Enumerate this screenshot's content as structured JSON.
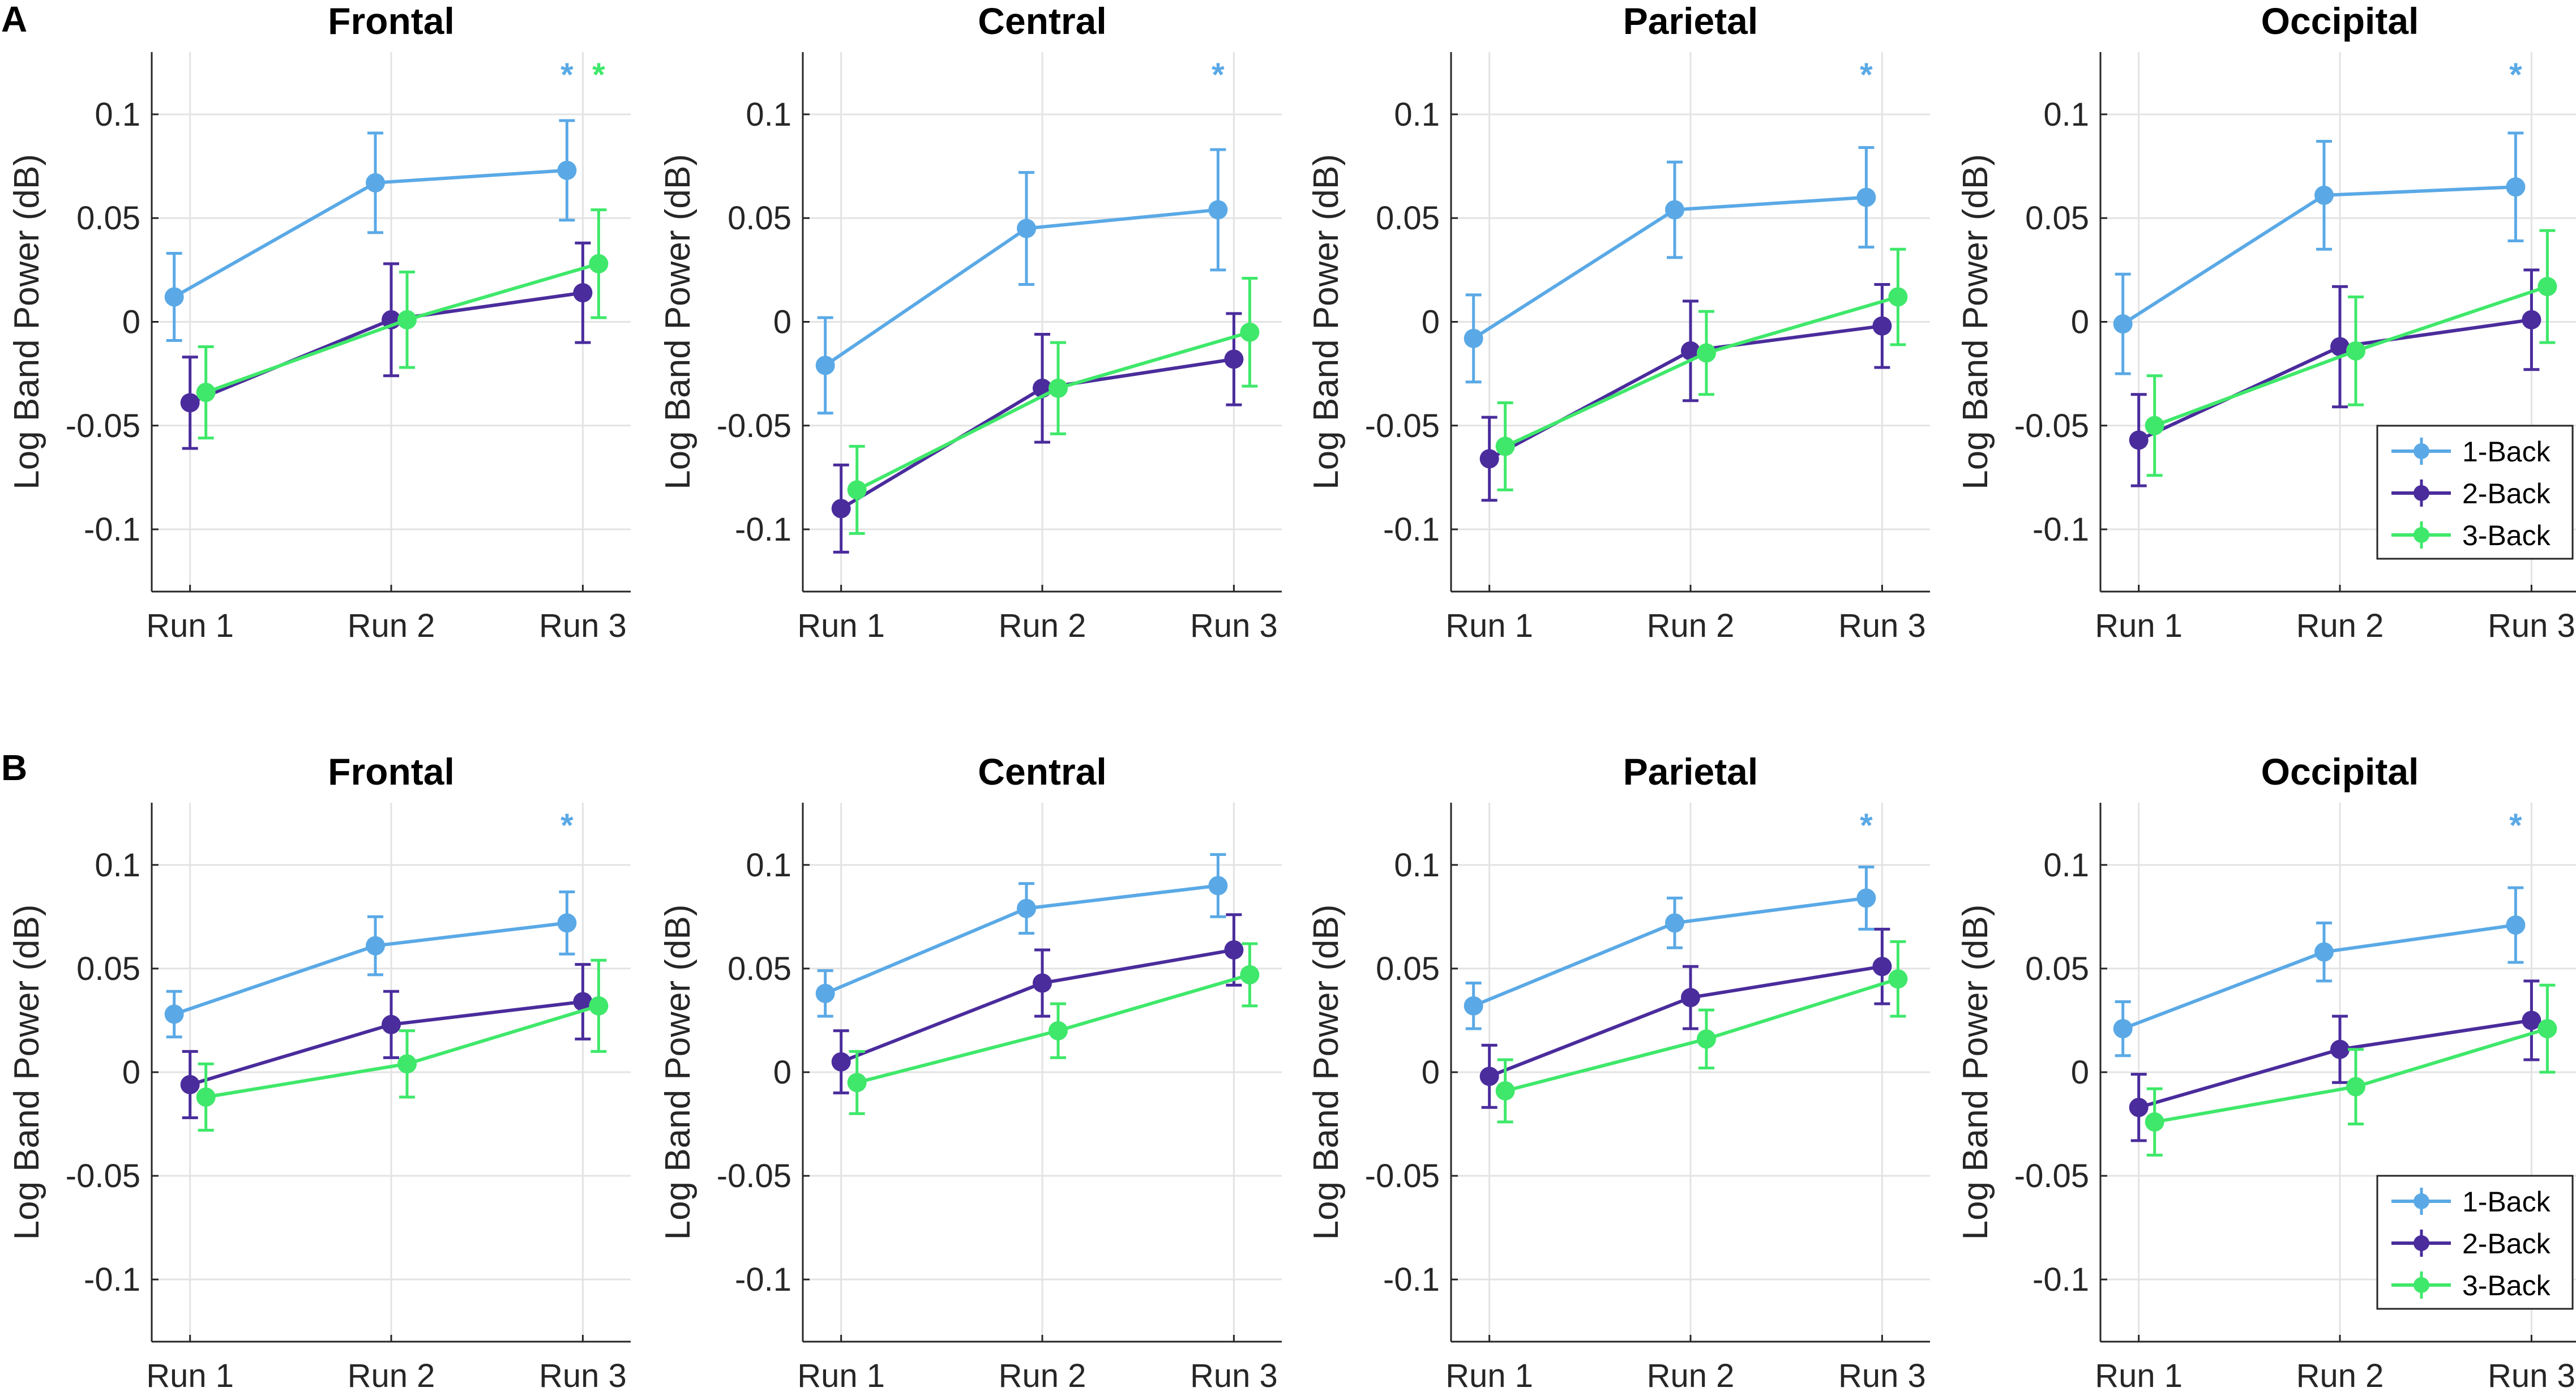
{
  "chart_data": [
    {
      "row": "A",
      "title": "Frontal",
      "type": "line",
      "ylabel": "Log Band Power (dB)",
      "ylim": [
        -0.13,
        0.13
      ],
      "categories": [
        "Run 1",
        "Run 2",
        "Run 3"
      ],
      "series": [
        {
          "name": "1-Back",
          "values": [
            0.012,
            0.067,
            0.073
          ],
          "err": [
            0.021,
            0.024,
            0.024
          ]
        },
        {
          "name": "2-Back",
          "values": [
            -0.039,
            0.001,
            0.014
          ],
          "err": [
            0.022,
            0.027,
            0.024
          ]
        },
        {
          "name": "3-Back",
          "values": [
            -0.034,
            0.001,
            0.028
          ],
          "err": [
            0.022,
            0.023,
            0.026
          ]
        }
      ],
      "significance": [
        {
          "text": "*",
          "series": "1-Back"
        },
        {
          "text": "*",
          "series": "3-Back"
        }
      ]
    },
    {
      "row": "A",
      "title": "Central",
      "type": "line",
      "ylabel": "Log Band Power (dB)",
      "ylim": [
        -0.13,
        0.13
      ],
      "categories": [
        "Run 1",
        "Run 2",
        "Run 3"
      ],
      "series": [
        {
          "name": "1-Back",
          "values": [
            -0.021,
            0.045,
            0.054
          ],
          "err": [
            0.023,
            0.027,
            0.029
          ]
        },
        {
          "name": "2-Back",
          "values": [
            -0.09,
            -0.032,
            -0.018
          ],
          "err": [
            0.021,
            0.026,
            0.022
          ]
        },
        {
          "name": "3-Back",
          "values": [
            -0.081,
            -0.032,
            -0.005
          ],
          "err": [
            0.021,
            0.022,
            0.026
          ]
        }
      ],
      "significance": [
        {
          "text": "*",
          "series": "1-Back"
        }
      ]
    },
    {
      "row": "A",
      "title": "Parietal",
      "type": "line",
      "ylabel": "Log Band Power (dB)",
      "ylim": [
        -0.13,
        0.13
      ],
      "categories": [
        "Run 1",
        "Run 2",
        "Run 3"
      ],
      "series": [
        {
          "name": "1-Back",
          "values": [
            -0.008,
            0.054,
            0.06
          ],
          "err": [
            0.021,
            0.023,
            0.024
          ]
        },
        {
          "name": "2-Back",
          "values": [
            -0.066,
            -0.014,
            -0.002
          ],
          "err": [
            0.02,
            0.024,
            0.02
          ]
        },
        {
          "name": "3-Back",
          "values": [
            -0.06,
            -0.015,
            0.012
          ],
          "err": [
            0.021,
            0.02,
            0.023
          ]
        }
      ],
      "significance": [
        {
          "text": "*",
          "series": "1-Back"
        }
      ]
    },
    {
      "row": "A",
      "title": "Occipital",
      "type": "line",
      "ylabel": "Log Band Power (dB)",
      "ylim": [
        -0.13,
        0.13
      ],
      "categories": [
        "Run 1",
        "Run 2",
        "Run 3"
      ],
      "series": [
        {
          "name": "1-Back",
          "values": [
            -0.001,
            0.061,
            0.065
          ],
          "err": [
            0.024,
            0.026,
            0.026
          ]
        },
        {
          "name": "2-Back",
          "values": [
            -0.057,
            -0.012,
            0.001
          ],
          "err": [
            0.022,
            0.029,
            0.024
          ]
        },
        {
          "name": "3-Back",
          "values": [
            -0.05,
            -0.014,
            0.017
          ],
          "err": [
            0.024,
            0.026,
            0.027
          ]
        }
      ],
      "significance": [
        {
          "text": "*",
          "series": "1-Back"
        }
      ],
      "legend": {
        "position": "bottom-right",
        "entries": [
          "1-Back",
          "2-Back",
          "3-Back"
        ]
      }
    },
    {
      "row": "B",
      "title": "Frontal",
      "type": "line",
      "ylabel": "Log Band Power (dB)",
      "ylim": [
        -0.13,
        0.13
      ],
      "categories": [
        "Run 1",
        "Run 2",
        "Run 3"
      ],
      "series": [
        {
          "name": "1-Back",
          "values": [
            0.028,
            0.061,
            0.072
          ],
          "err": [
            0.011,
            0.014,
            0.015
          ]
        },
        {
          "name": "2-Back",
          "values": [
            -0.006,
            0.023,
            0.034
          ],
          "err": [
            0.016,
            0.016,
            0.018
          ]
        },
        {
          "name": "3-Back",
          "values": [
            -0.012,
            0.004,
            0.032
          ],
          "err": [
            0.016,
            0.016,
            0.022
          ]
        }
      ],
      "significance": [
        {
          "text": "*",
          "series": "1-Back"
        }
      ]
    },
    {
      "row": "B",
      "title": "Central",
      "type": "line",
      "ylabel": "Log Band Power (dB)",
      "ylim": [
        -0.13,
        0.13
      ],
      "categories": [
        "Run 1",
        "Run 2",
        "Run 3"
      ],
      "series": [
        {
          "name": "1-Back",
          "values": [
            0.038,
            0.079,
            0.09
          ],
          "err": [
            0.011,
            0.012,
            0.015
          ]
        },
        {
          "name": "2-Back",
          "values": [
            0.005,
            0.043,
            0.059
          ],
          "err": [
            0.015,
            0.016,
            0.017
          ]
        },
        {
          "name": "3-Back",
          "values": [
            -0.005,
            0.02,
            0.047
          ],
          "err": [
            0.015,
            0.013,
            0.015
          ]
        }
      ],
      "significance": []
    },
    {
      "row": "B",
      "title": "Parietal",
      "type": "line",
      "ylabel": "Log Band Power (dB)",
      "ylim": [
        -0.13,
        0.13
      ],
      "categories": [
        "Run 1",
        "Run 2",
        "Run 3"
      ],
      "series": [
        {
          "name": "1-Back",
          "values": [
            0.032,
            0.072,
            0.084
          ],
          "err": [
            0.011,
            0.012,
            0.015
          ]
        },
        {
          "name": "2-Back",
          "values": [
            -0.002,
            0.036,
            0.051
          ],
          "err": [
            0.015,
            0.015,
            0.018
          ]
        },
        {
          "name": "3-Back",
          "values": [
            -0.009,
            0.016,
            0.045
          ],
          "err": [
            0.015,
            0.014,
            0.018
          ]
        }
      ],
      "significance": [
        {
          "text": "*",
          "series": "1-Back"
        }
      ]
    },
    {
      "row": "B",
      "title": "Occipital",
      "type": "line",
      "ylabel": "Log Band Power (dB)",
      "ylim": [
        -0.13,
        0.13
      ],
      "categories": [
        "Run 1",
        "Run 2",
        "Run 3"
      ],
      "series": [
        {
          "name": "1-Back",
          "values": [
            0.021,
            0.058,
            0.071
          ],
          "err": [
            0.013,
            0.014,
            0.018
          ]
        },
        {
          "name": "2-Back",
          "values": [
            -0.017,
            0.011,
            0.025
          ],
          "err": [
            0.016,
            0.016,
            0.019
          ]
        },
        {
          "name": "3-Back",
          "values": [
            -0.024,
            -0.007,
            0.021
          ],
          "err": [
            0.016,
            0.018,
            0.021
          ]
        }
      ],
      "significance": [
        {
          "text": "*",
          "series": "1-Back"
        }
      ],
      "legend": {
        "position": "bottom-right",
        "entries": [
          "1-Back",
          "2-Back",
          "3-Back"
        ]
      }
    }
  ],
  "panel_labels": [
    "A",
    "B"
  ],
  "y_ticks": [
    "0.1",
    "0.05",
    "0",
    "-0.05",
    "-0.1"
  ],
  "series_colors": {
    "1-Back": "#5aa9e6",
    "2-Back": "#4a2c9c",
    "3-Back": "#3fe86a"
  }
}
